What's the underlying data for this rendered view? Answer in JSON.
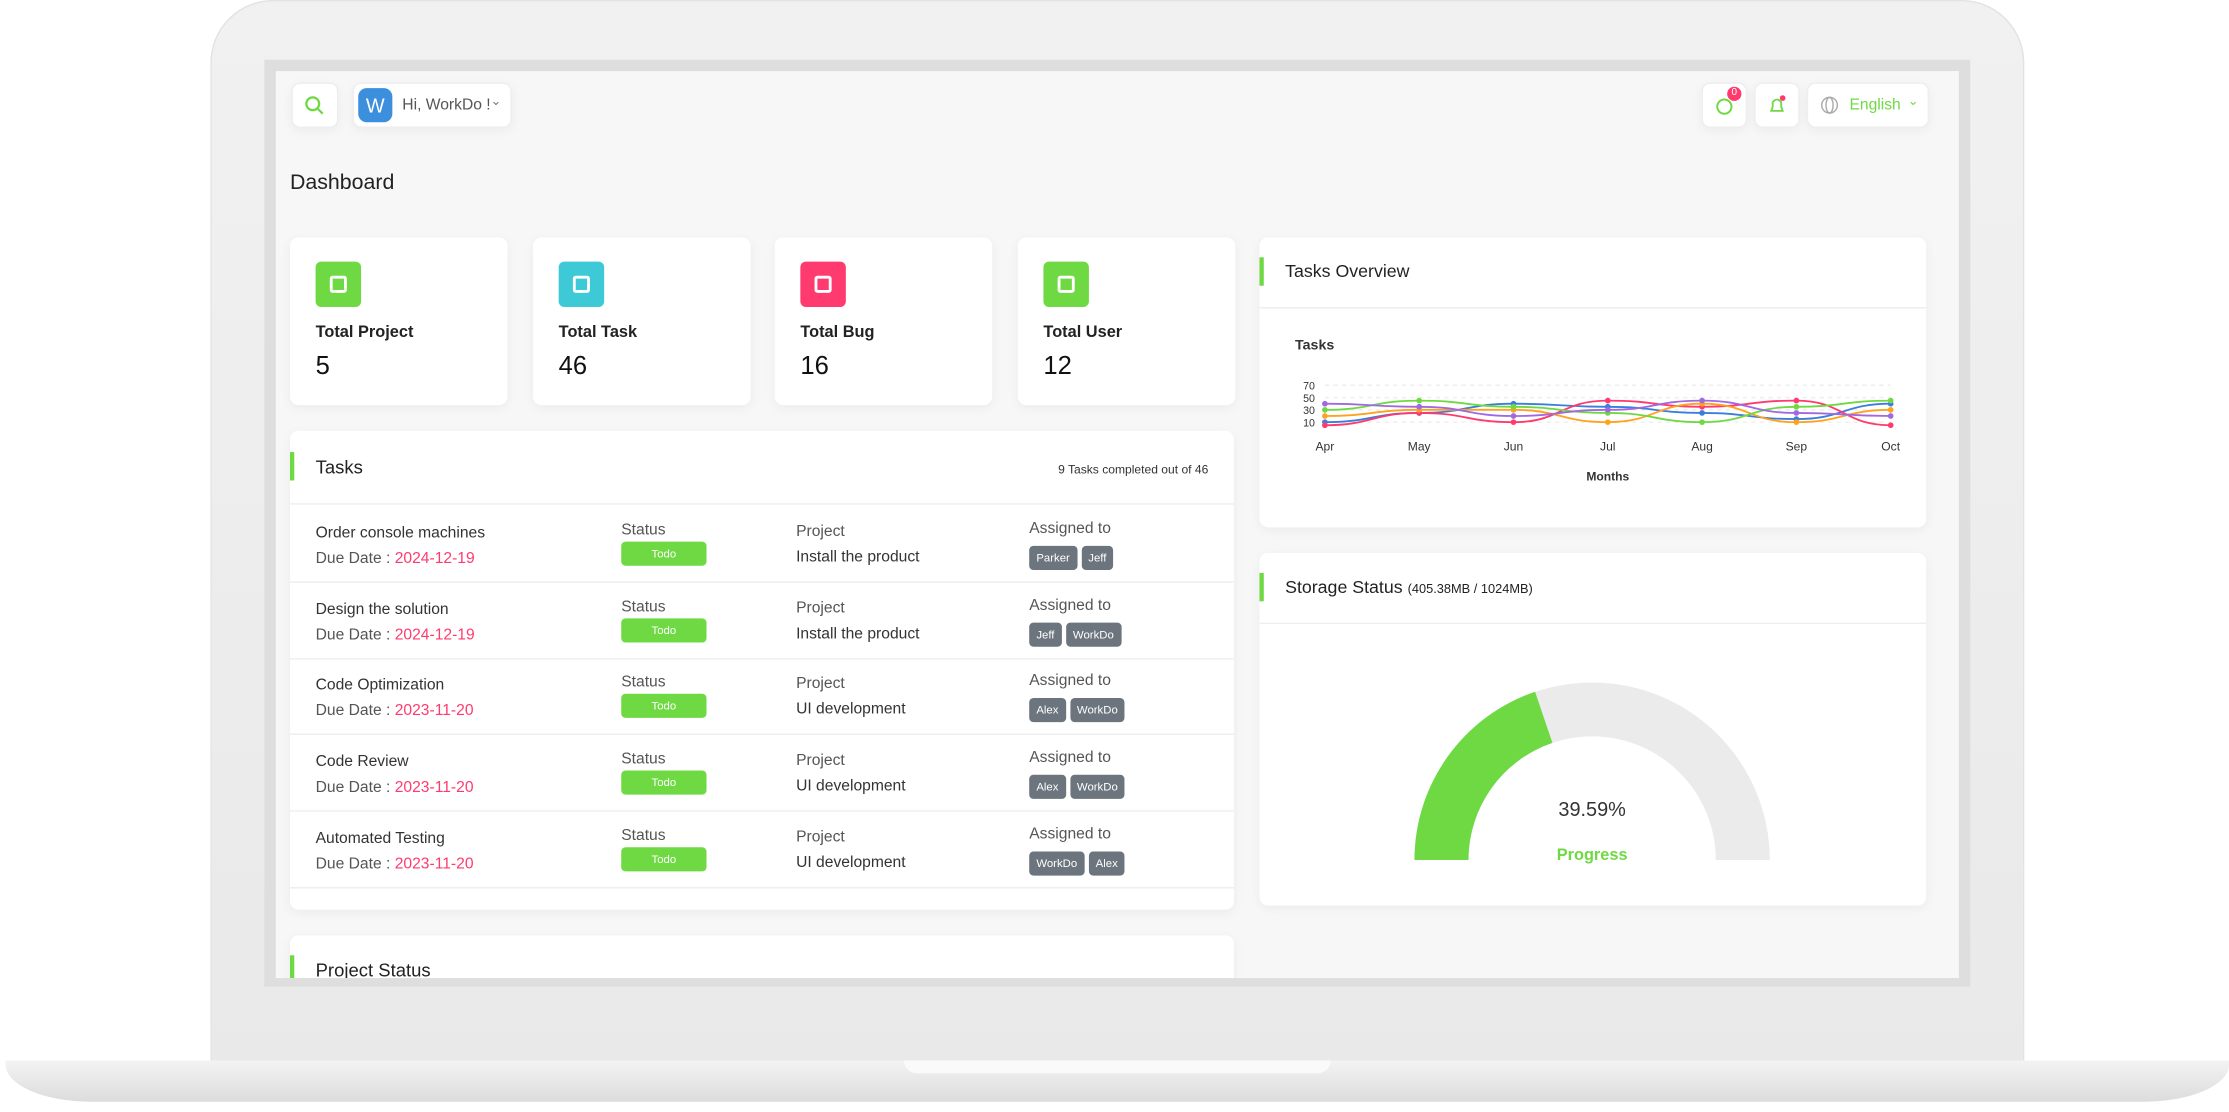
{
  "header": {
    "user_initial": "W",
    "greeting": "Hi, WorkDo !",
    "message_badge": "0",
    "language": "English"
  },
  "page_title": "Dashboard",
  "stats": [
    {
      "label": "Total Project",
      "value": "5",
      "color": "#6fd943"
    },
    {
      "label": "Total Task",
      "value": "46",
      "color": "#3ec9d6"
    },
    {
      "label": "Total Bug",
      "value": "16",
      "color": "#ff3a6e"
    },
    {
      "label": "Total User",
      "value": "12",
      "color": "#6fd943"
    }
  ],
  "tasks": {
    "title": "Tasks",
    "summary": "9 Tasks completed out of 46",
    "labels": {
      "due_date": "Due Date :",
      "status": "Status",
      "project": "Project",
      "assigned": "Assigned to"
    },
    "rows": [
      {
        "name": "Order console machines",
        "due": "2024-12-19",
        "status": "Todo",
        "project": "Install the product",
        "assignees": [
          "Parker",
          "Jeff"
        ]
      },
      {
        "name": "Design the solution",
        "due": "2024-12-19",
        "status": "Todo",
        "project": "Install the product",
        "assignees": [
          "Jeff",
          "WorkDo"
        ]
      },
      {
        "name": "Code Optimization",
        "due": "2023-11-20",
        "status": "Todo",
        "project": "UI development",
        "assignees": [
          "Alex",
          "WorkDo"
        ]
      },
      {
        "name": "Code Review",
        "due": "2023-11-20",
        "status": "Todo",
        "project": "UI development",
        "assignees": [
          "Alex",
          "WorkDo"
        ]
      },
      {
        "name": "Automated Testing",
        "due": "2023-11-20",
        "status": "Todo",
        "project": "UI development",
        "assignees": [
          "WorkDo",
          "Alex"
        ]
      }
    ]
  },
  "project_status": {
    "title": "Project Status"
  },
  "tasks_overview": {
    "title": "Tasks Overview",
    "chart_data": {
      "type": "line",
      "title": "Tasks",
      "categories": [
        "Apr",
        "May",
        "Jun",
        "Jul",
        "Aug",
        "Sep",
        "Oct"
      ],
      "xlabel": "Months",
      "ylim": [
        0,
        70
      ],
      "yticks": [
        10,
        30,
        50,
        70
      ],
      "grid": true,
      "series": [
        {
          "color": "#3b7ddd",
          "values": [
            10,
            25,
            40,
            35,
            25,
            15,
            40
          ]
        },
        {
          "color": "#ff3a6e",
          "values": [
            5,
            25,
            10,
            45,
            35,
            45,
            5
          ]
        },
        {
          "color": "#ffa21d",
          "values": [
            20,
            30,
            30,
            10,
            40,
            10,
            30
          ]
        },
        {
          "color": "#6fd943",
          "values": [
            30,
            45,
            35,
            25,
            10,
            35,
            45
          ]
        },
        {
          "color": "#a069e0",
          "values": [
            40,
            35,
            20,
            30,
            45,
            25,
            20
          ]
        }
      ]
    }
  },
  "storage": {
    "title": "Storage Status",
    "detail": "(405.38MB / 1024MB)",
    "chart_data": {
      "type": "gauge",
      "value": 39.59,
      "value_label": "39.59%",
      "label": "Progress",
      "ylim": [
        0,
        100
      ],
      "color": "#6fd943",
      "track_color": "#ebebeb"
    }
  }
}
